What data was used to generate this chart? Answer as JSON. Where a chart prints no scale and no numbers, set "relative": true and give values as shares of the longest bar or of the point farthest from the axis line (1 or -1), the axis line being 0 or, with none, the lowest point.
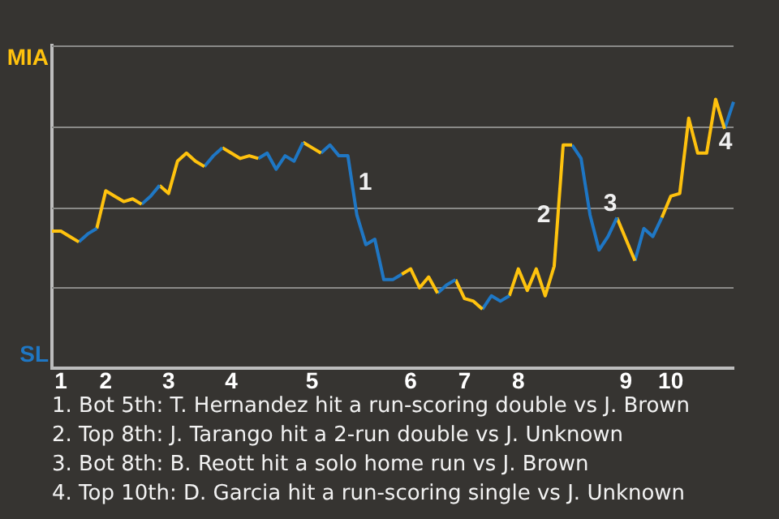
{
  "chart_data": {
    "type": "line",
    "relative": true,
    "legend": false,
    "marker": "none",
    "line_style": "solid",
    "grid": "y",
    "categories": [
      null,
      "1",
      null,
      null,
      null,
      null,
      "2",
      null,
      null,
      null,
      null,
      null,
      null,
      "3",
      null,
      null,
      null,
      null,
      null,
      null,
      "4",
      null,
      null,
      null,
      null,
      null,
      null,
      null,
      null,
      "5",
      null,
      null,
      null,
      null,
      null,
      null,
      null,
      null,
      null,
      null,
      "6",
      null,
      null,
      null,
      null,
      null,
      "7",
      null,
      null,
      null,
      null,
      null,
      "8",
      null,
      null,
      null,
      null,
      null,
      null,
      null,
      null,
      null,
      null,
      null,
      "9",
      null,
      null,
      null,
      null,
      "10",
      null,
      null,
      null,
      null,
      null,
      null,
      null
    ],
    "series": [
      {
        "color": "#ffc20e",
        "values": [
          0.51,
          0.51,
          0.49,
          0.47,
          null,
          null,
          null,
          null,
          null,
          null,
          null,
          null,
          null,
          null,
          null,
          null,
          null,
          null,
          null,
          null,
          null,
          null,
          null,
          null,
          null,
          null,
          null,
          null,
          null,
          null,
          null,
          null,
          null,
          null,
          null,
          null,
          null,
          null,
          null,
          null,
          null,
          null,
          null,
          null,
          null,
          null,
          null,
          null,
          null,
          null,
          null,
          null,
          null,
          null,
          null,
          null,
          null,
          null,
          null,
          null,
          null,
          null,
          null,
          null,
          null,
          null,
          null,
          null,
          null,
          null,
          null,
          null,
          null,
          null,
          null,
          null,
          null
        ]
      },
      {
        "color": "#1f77c5",
        "values": [
          null,
          null,
          null,
          0.47,
          0.5,
          0.52,
          null,
          null,
          null,
          null,
          null,
          null,
          null,
          null,
          null,
          null,
          null,
          null,
          null,
          null,
          null,
          null,
          null,
          null,
          null,
          null,
          null,
          null,
          null,
          null,
          null,
          null,
          null,
          null,
          null,
          null,
          null,
          null,
          null,
          null,
          null,
          null,
          null,
          null,
          null,
          null,
          null,
          null,
          null,
          null,
          null,
          null,
          null,
          null,
          null,
          null,
          null,
          null,
          null,
          null,
          null,
          null,
          null,
          null,
          null,
          null,
          null,
          null,
          null,
          null,
          null,
          null,
          null,
          null,
          null,
          null,
          null
        ]
      },
      {
        "color": "#ffc20f",
        "values": [
          null,
          null,
          null,
          null,
          null,
          0.52,
          0.66,
          0.64,
          0.62,
          0.63,
          0.61,
          null,
          null,
          null,
          null,
          null,
          null,
          null,
          null,
          null,
          null,
          null,
          null,
          null,
          null,
          null,
          null,
          null,
          null,
          null,
          null,
          null,
          null,
          null,
          null,
          null,
          null,
          null,
          null,
          null,
          null,
          null,
          null,
          null,
          null,
          null,
          null,
          null,
          null,
          null,
          null,
          null,
          null,
          null,
          null,
          null,
          null,
          null,
          null,
          null,
          null,
          null,
          null,
          null,
          null,
          null,
          null,
          null,
          null,
          null,
          null,
          null,
          null,
          null,
          null,
          null,
          null
        ]
      },
      {
        "color": "#1f78c4",
        "values": [
          null,
          null,
          null,
          null,
          null,
          null,
          null,
          null,
          null,
          null,
          0.61,
          0.64,
          0.68,
          null,
          null,
          null,
          null,
          null,
          null,
          null,
          null,
          null,
          null,
          null,
          null,
          null,
          null,
          null,
          null,
          null,
          null,
          null,
          null,
          null,
          null,
          null,
          null,
          null,
          null,
          null,
          null,
          null,
          null,
          null,
          null,
          null,
          null,
          null,
          null,
          null,
          null,
          null,
          null,
          null,
          null,
          null,
          null,
          null,
          null,
          null,
          null,
          null,
          null,
          null,
          null,
          null,
          null,
          null,
          null,
          null,
          null,
          null,
          null,
          null,
          null,
          null,
          null
        ]
      },
      {
        "color": "#ffc30e",
        "values": [
          null,
          null,
          null,
          null,
          null,
          null,
          null,
          null,
          null,
          null,
          null,
          null,
          0.68,
          0.65,
          0.77,
          0.8,
          0.77,
          0.75,
          null,
          null,
          null,
          null,
          null,
          null,
          null,
          null,
          null,
          null,
          null,
          null,
          null,
          null,
          null,
          null,
          null,
          null,
          null,
          null,
          null,
          null,
          null,
          null,
          null,
          null,
          null,
          null,
          null,
          null,
          null,
          null,
          null,
          null,
          null,
          null,
          null,
          null,
          null,
          null,
          null,
          null,
          null,
          null,
          null,
          null,
          null,
          null,
          null,
          null,
          null,
          null,
          null,
          null,
          null,
          null,
          null,
          null,
          null
        ]
      },
      {
        "color": "#1f76c4",
        "values": [
          null,
          null,
          null,
          null,
          null,
          null,
          null,
          null,
          null,
          null,
          null,
          null,
          null,
          null,
          null,
          null,
          null,
          0.75,
          0.79,
          0.82,
          null,
          null,
          null,
          null,
          null,
          null,
          null,
          null,
          null,
          null,
          null,
          null,
          null,
          null,
          null,
          null,
          null,
          null,
          null,
          null,
          null,
          null,
          null,
          null,
          null,
          null,
          null,
          null,
          null,
          null,
          null,
          null,
          null,
          null,
          null,
          null,
          null,
          null,
          null,
          null,
          null,
          null,
          null,
          null,
          null,
          null,
          null,
          null,
          null,
          null,
          null,
          null,
          null,
          null,
          null,
          null,
          null
        ]
      },
      {
        "color": "#ffc10e",
        "values": [
          null,
          null,
          null,
          null,
          null,
          null,
          null,
          null,
          null,
          null,
          null,
          null,
          null,
          null,
          null,
          null,
          null,
          null,
          null,
          0.82,
          0.8,
          0.78,
          0.79,
          0.78,
          null,
          null,
          null,
          null,
          null,
          null,
          null,
          null,
          null,
          null,
          null,
          null,
          null,
          null,
          null,
          null,
          null,
          null,
          null,
          null,
          null,
          null,
          null,
          null,
          null,
          null,
          null,
          null,
          null,
          null,
          null,
          null,
          null,
          null,
          null,
          null,
          null,
          null,
          null,
          null,
          null,
          null,
          null,
          null,
          null,
          null,
          null,
          null,
          null,
          null,
          null,
          null,
          null
        ]
      },
      {
        "color": "#1e77c4",
        "values": [
          null,
          null,
          null,
          null,
          null,
          null,
          null,
          null,
          null,
          null,
          null,
          null,
          null,
          null,
          null,
          null,
          null,
          null,
          null,
          null,
          null,
          null,
          null,
          0.78,
          0.8,
          0.74,
          0.79,
          0.77,
          0.84,
          null,
          null,
          null,
          null,
          null,
          null,
          null,
          null,
          null,
          null,
          null,
          null,
          null,
          null,
          null,
          null,
          null,
          null,
          null,
          null,
          null,
          null,
          null,
          null,
          null,
          null,
          null,
          null,
          null,
          null,
          null,
          null,
          null,
          null,
          null,
          null,
          null,
          null,
          null,
          null,
          null,
          null,
          null,
          null,
          null,
          null,
          null,
          null
        ]
      },
      {
        "color": "#fec20e",
        "values": [
          null,
          null,
          null,
          null,
          null,
          null,
          null,
          null,
          null,
          null,
          null,
          null,
          null,
          null,
          null,
          null,
          null,
          null,
          null,
          null,
          null,
          null,
          null,
          null,
          null,
          null,
          null,
          null,
          0.84,
          0.82,
          0.8,
          null,
          null,
          null,
          null,
          null,
          null,
          null,
          null,
          null,
          null,
          null,
          null,
          null,
          null,
          null,
          null,
          null,
          null,
          null,
          null,
          null,
          null,
          null,
          null,
          null,
          null,
          null,
          null,
          null,
          null,
          null,
          null,
          null,
          null,
          null,
          null,
          null,
          null,
          null,
          null,
          null,
          null,
          null,
          null,
          null,
          null
        ]
      },
      {
        "color": "#2077c4",
        "values": [
          null,
          null,
          null,
          null,
          null,
          null,
          null,
          null,
          null,
          null,
          null,
          null,
          null,
          null,
          null,
          null,
          null,
          null,
          null,
          null,
          null,
          null,
          null,
          null,
          null,
          null,
          null,
          null,
          null,
          null,
          0.8,
          0.83,
          0.79,
          0.79,
          0.57,
          0.46,
          0.48,
          0.33,
          0.33,
          0.35,
          null,
          null,
          null,
          null,
          null,
          null,
          null,
          null,
          null,
          null,
          null,
          null,
          null,
          null,
          null,
          null,
          null,
          null,
          null,
          null,
          null,
          null,
          null,
          null,
          null,
          null,
          null,
          null,
          null,
          null,
          null,
          null,
          null,
          null,
          null,
          null,
          null
        ]
      },
      {
        "color": "#ffc20d",
        "values": [
          null,
          null,
          null,
          null,
          null,
          null,
          null,
          null,
          null,
          null,
          null,
          null,
          null,
          null,
          null,
          null,
          null,
          null,
          null,
          null,
          null,
          null,
          null,
          null,
          null,
          null,
          null,
          null,
          null,
          null,
          null,
          null,
          null,
          null,
          null,
          null,
          null,
          null,
          null,
          0.35,
          0.37,
          0.3,
          0.34,
          0.28,
          null,
          null,
          null,
          null,
          null,
          null,
          null,
          null,
          null,
          null,
          null,
          null,
          null,
          null,
          null,
          null,
          null,
          null,
          null,
          null,
          null,
          null,
          null,
          null,
          null,
          null,
          null,
          null,
          null,
          null,
          null,
          null,
          null
        ]
      },
      {
        "color": "#1f77c3",
        "values": [
          null,
          null,
          null,
          null,
          null,
          null,
          null,
          null,
          null,
          null,
          null,
          null,
          null,
          null,
          null,
          null,
          null,
          null,
          null,
          null,
          null,
          null,
          null,
          null,
          null,
          null,
          null,
          null,
          null,
          null,
          null,
          null,
          null,
          null,
          null,
          null,
          null,
          null,
          null,
          null,
          null,
          null,
          null,
          0.28,
          0.31,
          0.33,
          null,
          null,
          null,
          null,
          null,
          null,
          null,
          null,
          null,
          null,
          null,
          null,
          null,
          null,
          null,
          null,
          null,
          null,
          null,
          null,
          null,
          null,
          null,
          null,
          null,
          null,
          null,
          null,
          null,
          null,
          null
        ]
      },
      {
        "color": "#ffc30f",
        "values": [
          null,
          null,
          null,
          null,
          null,
          null,
          null,
          null,
          null,
          null,
          null,
          null,
          null,
          null,
          null,
          null,
          null,
          null,
          null,
          null,
          null,
          null,
          null,
          null,
          null,
          null,
          null,
          null,
          null,
          null,
          null,
          null,
          null,
          null,
          null,
          null,
          null,
          null,
          null,
          null,
          null,
          null,
          null,
          null,
          null,
          0.33,
          0.26,
          0.25,
          0.22,
          null,
          null,
          null,
          null,
          null,
          null,
          null,
          null,
          null,
          null,
          null,
          null,
          null,
          null,
          null,
          null,
          null,
          null,
          null,
          null,
          null,
          null,
          null,
          null,
          null,
          null,
          null,
          null
        ]
      },
      {
        "color": "#1f78c5",
        "values": [
          null,
          null,
          null,
          null,
          null,
          null,
          null,
          null,
          null,
          null,
          null,
          null,
          null,
          null,
          null,
          null,
          null,
          null,
          null,
          null,
          null,
          null,
          null,
          null,
          null,
          null,
          null,
          null,
          null,
          null,
          null,
          null,
          null,
          null,
          null,
          null,
          null,
          null,
          null,
          null,
          null,
          null,
          null,
          null,
          null,
          null,
          null,
          null,
          0.22,
          0.27,
          0.25,
          0.27,
          null,
          null,
          null,
          null,
          null,
          null,
          null,
          null,
          null,
          null,
          null,
          null,
          null,
          null,
          null,
          null,
          null,
          null,
          null,
          null,
          null,
          null,
          null,
          null,
          null
        ]
      },
      {
        "color": "#fec30e",
        "values": [
          null,
          null,
          null,
          null,
          null,
          null,
          null,
          null,
          null,
          null,
          null,
          null,
          null,
          null,
          null,
          null,
          null,
          null,
          null,
          null,
          null,
          null,
          null,
          null,
          null,
          null,
          null,
          null,
          null,
          null,
          null,
          null,
          null,
          null,
          null,
          null,
          null,
          null,
          null,
          null,
          null,
          null,
          null,
          null,
          null,
          null,
          null,
          null,
          null,
          null,
          null,
          0.27,
          0.37,
          0.29,
          0.37,
          0.27,
          0.38,
          0.83,
          0.83,
          null,
          null,
          null,
          null,
          null,
          null,
          null,
          null,
          null,
          null,
          null,
          null,
          null,
          null,
          null,
          null,
          null,
          null
        ]
      },
      {
        "color": "#1e76c4",
        "values": [
          null,
          null,
          null,
          null,
          null,
          null,
          null,
          null,
          null,
          null,
          null,
          null,
          null,
          null,
          null,
          null,
          null,
          null,
          null,
          null,
          null,
          null,
          null,
          null,
          null,
          null,
          null,
          null,
          null,
          null,
          null,
          null,
          null,
          null,
          null,
          null,
          null,
          null,
          null,
          null,
          null,
          null,
          null,
          null,
          null,
          null,
          null,
          null,
          null,
          null,
          null,
          null,
          null,
          null,
          null,
          null,
          null,
          null,
          0.83,
          0.78,
          0.57,
          0.44,
          0.49,
          0.56,
          null,
          null,
          null,
          null,
          null,
          null,
          null,
          null,
          null,
          null,
          null,
          null,
          null
        ]
      },
      {
        "color": "#ffc10f",
        "values": [
          null,
          null,
          null,
          null,
          null,
          null,
          null,
          null,
          null,
          null,
          null,
          null,
          null,
          null,
          null,
          null,
          null,
          null,
          null,
          null,
          null,
          null,
          null,
          null,
          null,
          null,
          null,
          null,
          null,
          null,
          null,
          null,
          null,
          null,
          null,
          null,
          null,
          null,
          null,
          null,
          null,
          null,
          null,
          null,
          null,
          null,
          null,
          null,
          null,
          null,
          null,
          null,
          null,
          null,
          null,
          null,
          null,
          null,
          null,
          null,
          null,
          null,
          null,
          0.56,
          0.48,
          0.4,
          null,
          null,
          null,
          null,
          null,
          null,
          null,
          null,
          null,
          null,
          null
        ]
      },
      {
        "color": "#2078c5",
        "values": [
          null,
          null,
          null,
          null,
          null,
          null,
          null,
          null,
          null,
          null,
          null,
          null,
          null,
          null,
          null,
          null,
          null,
          null,
          null,
          null,
          null,
          null,
          null,
          null,
          null,
          null,
          null,
          null,
          null,
          null,
          null,
          null,
          null,
          null,
          null,
          null,
          null,
          null,
          null,
          null,
          null,
          null,
          null,
          null,
          null,
          null,
          null,
          null,
          null,
          null,
          null,
          null,
          null,
          null,
          null,
          null,
          null,
          null,
          null,
          null,
          null,
          null,
          null,
          null,
          null,
          0.4,
          0.52,
          0.49,
          0.56,
          null,
          null,
          null,
          null,
          null,
          null,
          null,
          null
        ]
      },
      {
        "color": "#fec10e",
        "values": [
          null,
          null,
          null,
          null,
          null,
          null,
          null,
          null,
          null,
          null,
          null,
          null,
          null,
          null,
          null,
          null,
          null,
          null,
          null,
          null,
          null,
          null,
          null,
          null,
          null,
          null,
          null,
          null,
          null,
          null,
          null,
          null,
          null,
          null,
          null,
          null,
          null,
          null,
          null,
          null,
          null,
          null,
          null,
          null,
          null,
          null,
          null,
          null,
          null,
          null,
          null,
          null,
          null,
          null,
          null,
          null,
          null,
          null,
          null,
          null,
          null,
          null,
          null,
          null,
          null,
          null,
          null,
          null,
          0.56,
          0.64,
          0.65,
          0.93,
          0.8,
          0.8,
          1,
          0.89,
          null
        ]
      },
      {
        "color": "#1f77c4",
        "values": [
          null,
          null,
          null,
          null,
          null,
          null,
          null,
          null,
          null,
          null,
          null,
          null,
          null,
          null,
          null,
          null,
          null,
          null,
          null,
          null,
          null,
          null,
          null,
          null,
          null,
          null,
          null,
          null,
          null,
          null,
          null,
          null,
          null,
          null,
          null,
          null,
          null,
          null,
          null,
          null,
          null,
          null,
          null,
          null,
          null,
          null,
          null,
          null,
          null,
          null,
          null,
          null,
          null,
          null,
          null,
          null,
          null,
          null,
          null,
          null,
          null,
          null,
          null,
          null,
          null,
          null,
          null,
          null,
          null,
          null,
          null,
          null,
          null,
          null,
          null,
          0.89,
          0.99
        ]
      }
    ],
    "annotations": [
      "MIA",
      "SL",
      "1",
      "2",
      "3",
      "4",
      "1. Bot 5th: T. Hernandez hit a run-scoring double vs J. Brown",
      "2. Top 8th: J. Tarango hit a 2-run double vs J. Unknown",
      "3. Bot 8th: B. Reott hit a solo home run vs J. Brown",
      "4. Top 10th: D. Garcia hit a run-scoring single vs J. Unknown"
    ]
  }
}
